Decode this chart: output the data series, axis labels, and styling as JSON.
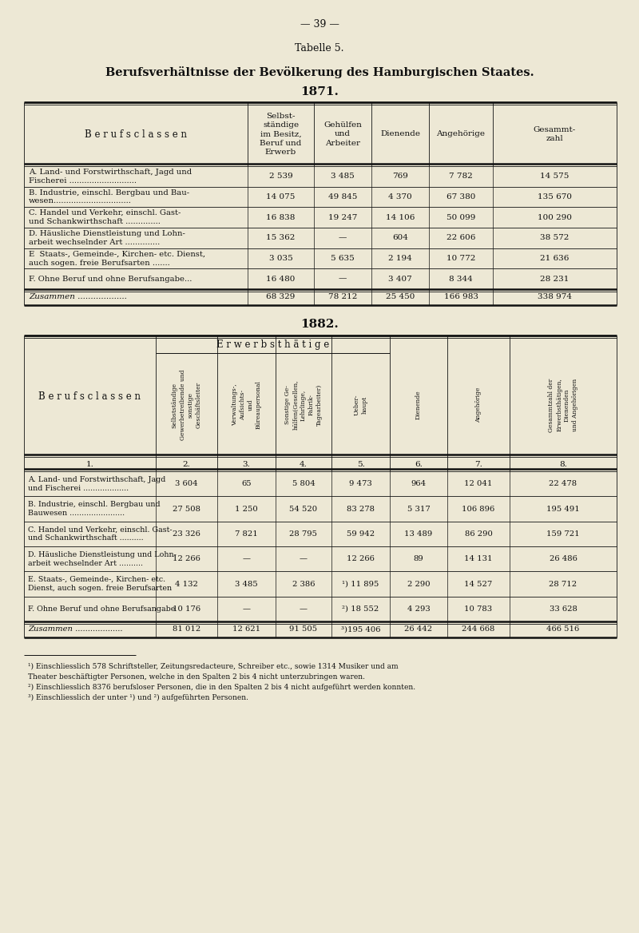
{
  "page_number": "— 39 —",
  "tabelle": "Tabelle 5.",
  "title": "Berufsverhältnisse der Bevölkerung des Hamburgischen Staates.",
  "bg_color": "#ede8d5",
  "text_color": "#111111",
  "section1_year": "1871.",
  "section1_col_header": "B e r u f s c l a s s e n",
  "section1_headers": [
    "Selbst-\nständige\nim Besitz,\nBeruf und\nErwerb",
    "Gehülfen\nund\nArbeiter",
    "Dienende",
    "Angehörige",
    "Gesammt-\nzahl"
  ],
  "section1_rows": [
    [
      "A. Land- und Forstwirthschaft, Jagd und\nFischerei ...........................",
      "2 539",
      "3 485",
      "769",
      "7 782",
      "14 575"
    ],
    [
      "B. Industrie, einschl. Bergbau und Bau-\nwesen...............................",
      "14 075",
      "49 845",
      "4 370",
      "67 380",
      "135 670"
    ],
    [
      "C. Handel und Verkehr, einschl. Gast-\nund Schankwirthschaft ..............",
      "16 838",
      "19 247",
      "14 106",
      "50 099",
      "100 290"
    ],
    [
      "D. Häusliche Dienstleistung und Lohn-\narbeit wechselnder Art ..............",
      "15 362",
      "—",
      "604",
      "22 606",
      "38 572"
    ],
    [
      "E  Staats-, Gemeinde-, Kirchen- etc. Dienst,\nauch sogen. freie Berufsarten .......",
      "3 035",
      "5 635",
      "2 194",
      "10 772",
      "21 636"
    ],
    [
      "F. Ohne Beruf und ohne Berufsangabe...",
      "16 480",
      "—",
      "3 407",
      "8 344",
      "28 231"
    ]
  ],
  "section1_total_row": [
    "Zusammen ...................",
    "68 329",
    "78 212",
    "25 450",
    "166 983",
    "338 974"
  ],
  "section2_year": "1882.",
  "section2_col_header": "B e r u f s c l a s s e n",
  "section2_group_header": "E r w e r b s t h ä t i g e",
  "section2_headers_rotated": [
    "Selbstständige\nGewerbetreibende und\nsonstige\nGeschäftsleiter",
    "Verwaltungs-,\nAufsichts-\nund\nBüreaupersonal",
    "Sonstige Ge-\nhülfen(Gesellen,\nLehrlinge,\nFabrik-\nTagearbeiter)",
    "Ueber-\nhaupt",
    "Dienende",
    "Angehörige",
    "Gesammtzahl der\nErwerbsthätigen,\nDienenden\nund Angehörigen"
  ],
  "section2_col_numbers": [
    "1.",
    "2.",
    "3.",
    "4.",
    "5.",
    "6.",
    "7.",
    "8."
  ],
  "section2_rows": [
    [
      "A. Land- und Forstwirthschaft, Jagd\nund Fischerei ...................",
      "3 604",
      "65",
      "5 804",
      "9 473",
      "964",
      "12 041",
      "22 478"
    ],
    [
      "B. Industrie, einschl. Bergbau und\nBauwesen .......................",
      "27 508",
      "1 250",
      "54 520",
      "83 278",
      "5 317",
      "106 896",
      "195 491"
    ],
    [
      "C. Handel und Verkehr, einschl. Gast-\nund Schankwirthschaft ..........",
      "23 326",
      "7 821",
      "28 795",
      "59 942",
      "13 489",
      "86 290",
      "159 721"
    ],
    [
      "D. Häusliche Dienstleistung und Lohn-\narbeit wechselnder Art ..........",
      "12 266",
      "—",
      "—",
      "12 266",
      "89",
      "14 131",
      "26 486"
    ],
    [
      "E. Staats-, Gemeinde-, Kirchen- etc.\nDienst, auch sogen. freie Berufsarten",
      "4 132",
      "3 485",
      "2 386",
      "¹) 11 895",
      "2 290",
      "14 527",
      "28 712"
    ],
    [
      "F. Ohne Beruf und ohne Berufsangabe",
      "10 176",
      "—",
      "—",
      "²) 18 552",
      "4 293",
      "10 783",
      "33 628"
    ]
  ],
  "section2_total_row": [
    "Zusammen ...................",
    "81 012",
    "12 621",
    "91 505",
    "³)195 406",
    "26 442",
    "244 668",
    "466 516"
  ],
  "footnotes": [
    "¹) Einschliesslich 578 Schriftsteller, Zeitungsredacteure, Schreiber etc., sowie 1314 Musiker und am",
    "Theater beschäftigter Personen, welche in den Spalten 2 bis 4 nicht unterzubringen waren.",
    "²) Einschliesslich 8376 berufsloser Personen, die in den Spalten 2 bis 4 nicht aufgeführt werden konnten.",
    "³) Einschliesslich der unter ¹) und ²) aufgeführten Personen."
  ]
}
